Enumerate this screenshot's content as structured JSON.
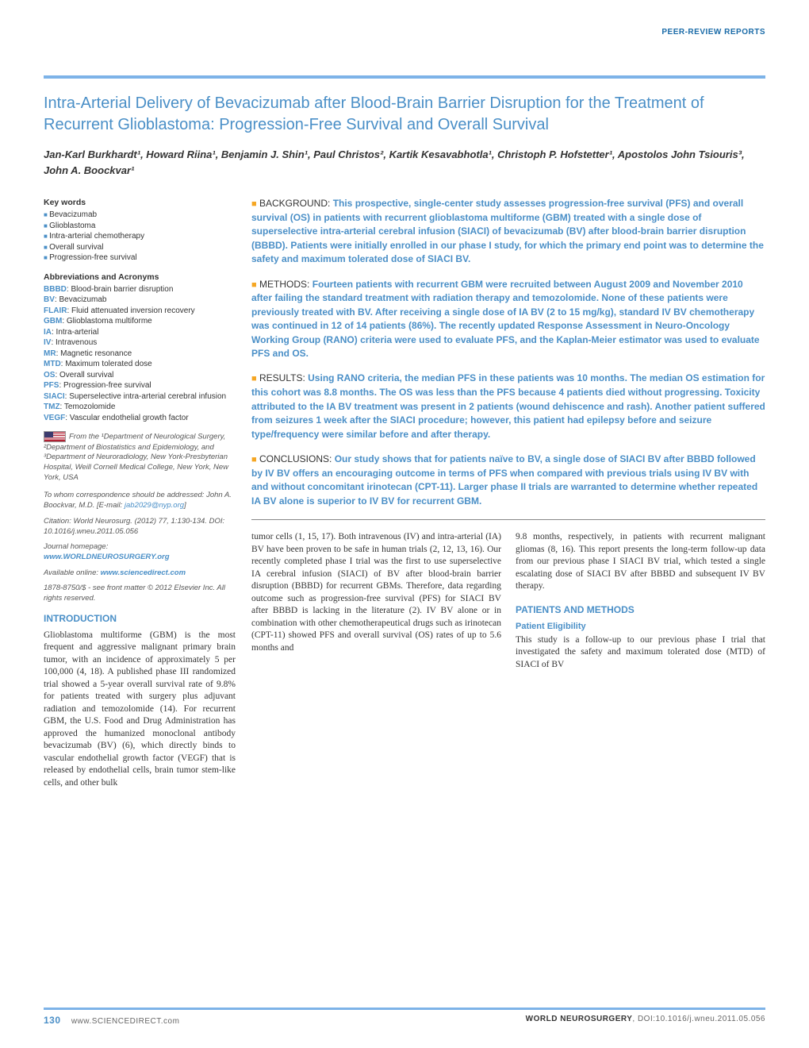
{
  "header": {
    "section": "PEER-REVIEW REPORTS"
  },
  "title": "Intra-Arterial Delivery of Bevacizumab after Blood-Brain Barrier Disruption for the Treatment of Recurrent Glioblastoma: Progression-Free Survival and Overall Survival",
  "authors": "Jan-Karl Burkhardt¹, Howard Riina¹, Benjamin J. Shin¹, Paul Christos², Kartik Kesavabhotla¹, Christoph P. Hofstetter¹, Apostolos John Tsiouris³, John A. Boockvar¹",
  "keywords": {
    "heading": "Key words",
    "items": [
      "Bevacizumab",
      "Glioblastoma",
      "Intra-arterial chemotherapy",
      "Overall survival",
      "Progression-free survival"
    ]
  },
  "abbreviations": {
    "heading": "Abbreviations and Acronyms",
    "items": [
      {
        "k": "BBBD",
        "v": "Blood-brain barrier disruption"
      },
      {
        "k": "BV",
        "v": "Bevacizumab"
      },
      {
        "k": "FLAIR",
        "v": "Fluid attenuated inversion recovery"
      },
      {
        "k": "GBM",
        "v": "Glioblastoma multiforme"
      },
      {
        "k": "IA",
        "v": "Intra-arterial"
      },
      {
        "k": "IV",
        "v": "Intravenous"
      },
      {
        "k": "MR",
        "v": "Magnetic resonance"
      },
      {
        "k": "MTD",
        "v": "Maximum tolerated dose"
      },
      {
        "k": "OS",
        "v": "Overall survival"
      },
      {
        "k": "PFS",
        "v": "Progression-free survival"
      },
      {
        "k": "SIACI",
        "v": "Superselective intra-arterial cerebral infusion"
      },
      {
        "k": "TMZ",
        "v": "Temozolomide"
      },
      {
        "k": "VEGF",
        "v": "Vascular endothelial growth factor"
      }
    ]
  },
  "affiliation": "From the ¹Department of Neurological Surgery, ²Department of Biostatistics and Epidemiology, and ³Department of Neuroradiology, New York-Presbyterian Hospital, Weill Cornell Medical College, New York, New York, USA",
  "correspondence": {
    "text": "To whom correspondence should be addressed: John A. Boockvar, M.D. [E-mail: ",
    "email": "jab2029@nyp.org",
    "close": "]"
  },
  "citation": "Citation: World Neurosurg. (2012) 77, 1:130-134. DOI: 10.1016/j.wneu.2011.05.056",
  "homepage": {
    "label": "Journal homepage: ",
    "url": "www.WORLDNEUROSURGERY.org"
  },
  "online": {
    "label": "Available online: ",
    "url": "www.sciencedirect.com"
  },
  "copyright": "1878-8750/$ - see front matter © 2012 Elsevier Inc. All rights reserved.",
  "abstract": {
    "background": {
      "label": "BACKGROUND:",
      "text": "This prospective, single-center study assesses progression-free survival (PFS) and overall survival (OS) in patients with recurrent glioblastoma multiforme (GBM) treated with a single dose of superselective intra-arterial cerebral infusion (SIACI) of bevacizumab (BV) after blood-brain barrier disruption (BBBD). Patients were initially enrolled in our phase I study, for which the primary end point was to determine the safety and maximum tolerated dose of SIACI BV."
    },
    "methods": {
      "label": "METHODS:",
      "text": "Fourteen patients with recurrent GBM were recruited between August 2009 and November 2010 after failing the standard treatment with radiation therapy and temozolomide. None of these patients were previously treated with BV. After receiving a single dose of IA BV (2 to 15 mg/kg), standard IV BV chemotherapy was continued in 12 of 14 patients (86%). The recently updated Response Assessment in Neuro-Oncology Working Group (RANO) criteria were used to evaluate PFS, and the Kaplan-Meier estimator was used to evaluate PFS and OS."
    },
    "results": {
      "label": "RESULTS:",
      "text": "Using RANO criteria, the median PFS in these patients was 10 months. The median OS estimation for this cohort was 8.8 months. The OS was less than the PFS because 4 patients died without progressing. Toxicity attributed to the IA BV treatment was present in 2 patients (wound dehiscence and rash). Another patient suffered from seizures 1 week after the SIACI procedure; however, this patient had epilepsy before and seizure type/frequency were similar before and after therapy."
    },
    "conclusions": {
      "label": "CONCLUSIONS:",
      "text": "Our study shows that for patients naïve to BV, a single dose of SIACI BV after BBBD followed by IV BV offers an encouraging outcome in terms of PFS when compared with previous trials using IV BV with and without concomitant irinotecan (CPT-11). Larger phase II trials are warranted to determine whether repeated IA BV alone is superior to IV BV for recurrent GBM."
    }
  },
  "intro": {
    "heading": "INTRODUCTION",
    "col1": "Glioblastoma multiforme (GBM) is the most frequent and aggressive malignant primary brain tumor, with an incidence of approximately 5 per 100,000 (4, 18). A published phase III randomized trial showed a 5-year overall survival rate of 9.8% for patients treated with surgery plus adjuvant radiation and temozolomide (14). For recurrent GBM, the U.S. Food and Drug Administration has approved the humanized monoclonal antibody bevacizumab (BV) (6), which directly binds to vascular endothelial growth factor (VEGF) that is released by endothelial cells, brain tumor stem-like cells, and other bulk",
    "col2": "tumor cells (1, 15, 17). Both intravenous (IV) and intra-arterial (IA) BV have been proven to be safe in human trials (2, 12, 13, 16). Our recently completed phase I trial was the first to use superselective IA cerebral infusion (SIACI) of BV after blood-brain barrier disruption (BBBD) for recurrent GBMs. Therefore, data regarding outcome such as progression-free survival (PFS) for SIACI BV after BBBD is lacking in the literature (2). IV BV alone or in combination with other chemotherapeutical drugs such as irinotecan (CPT-11) showed PFS and overall survival (OS) rates of up to 5.6 months and",
    "col3": "9.8 months, respectively, in patients with recurrent malignant gliomas (8, 16). This report presents the long-term follow-up data from our previous phase I SIACI BV trial, which tested a single escalating dose of SIACI BV after BBBD and subsequent IV BV therapy."
  },
  "patients_methods": {
    "heading": "PATIENTS AND METHODS",
    "sub": "Patient Eligibility",
    "text": "This study is a follow-up to our previous phase I trial that investigated the safety and maximum tolerated dose (MTD) of SIACI of BV"
  },
  "footer": {
    "page": "130",
    "left": "www.SCIENCEDIRECT.com",
    "right_bold": "WORLD NEUROSURGERY",
    "right_rest": ", DOI:10.1016/j.wneu.2011.05.056"
  },
  "colors": {
    "accent": "#4a8fc7",
    "bar": "#7db3e8",
    "bullet": "#f5a623"
  }
}
